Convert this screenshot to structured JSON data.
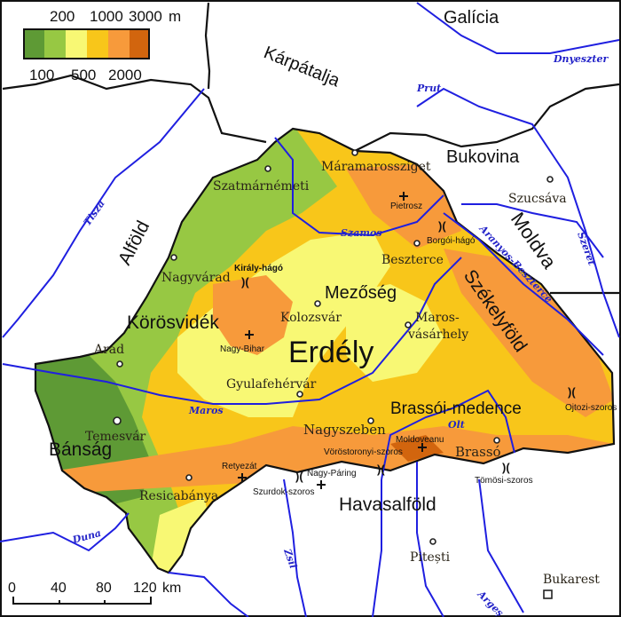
{
  "legend": {
    "unit": "m",
    "top_ticks": [
      "200",
      "1000",
      "3000"
    ],
    "bottom_ticks": [
      "100",
      "500",
      "2000"
    ],
    "colors": [
      "#5e9a35",
      "#97c843",
      "#f8f874",
      "#f8c61a",
      "#f79a3b",
      "#d2650e"
    ]
  },
  "scale_bar": {
    "ticks": [
      "0",
      "40",
      "80",
      "120"
    ],
    "unit": "km"
  },
  "regions": {
    "erdely": "Erdély",
    "mezoseg": "Mezőség",
    "korosvidek": "Körösvidék",
    "bansag": "Bánság",
    "szekelyfold": "Székelyföld",
    "brassoi_medence": "Brassói-medence",
    "havasalfold": "Havasalföld",
    "alfold": "Alföld",
    "karpatalja": "Kárpátalja",
    "galicia": "Galícia",
    "bukovina": "Bukovina",
    "moldva": "Moldva"
  },
  "cities": {
    "maramarossziget": "Máramarossziget",
    "szatmarnemeti": "Szatmárnémeti",
    "nagyvarad": "Nagyvárad",
    "kolozsvar": "Kolozsvár",
    "beszterce": "Beszterce",
    "marosvasarhely_1": "Maros-",
    "marosvasarhely_2": "vásárhely",
    "arad": "Arad",
    "gyulafehervar": "Gyulafehérvár",
    "temesvar": "Temesvár",
    "nagyszeben": "Nagyszeben",
    "brasso": "Brassó",
    "resicabanya": "Resicabánya",
    "szucsava": "Szucsáva",
    "pitesti": "Pitești",
    "bukarest": "Bukarest"
  },
  "peaks": {
    "pietrosz": "Pietrosz",
    "nagy_bihar": "Nagy-Bihar",
    "moldoveanu": "Moldoveanu",
    "retyezat": "Retyezát",
    "nagy_paring": "Nagy-Páring"
  },
  "passes": {
    "borgoi": "Borgói-hágó",
    "kiraly": "Király-hágó",
    "ojtozi": "Ojtozi-szoros",
    "vorostoronyi": "Vöröstoronyi-szoros",
    "tomosi": "Tömösi-szoros",
    "szurdok": "Szurdok-szoros"
  },
  "rivers": {
    "dnyeszter": "Dnyeszter",
    "prut": "Prut",
    "tisza": "Tisza",
    "szamos": "Szamos",
    "szeret": "Szeret",
    "aranyos_beszterce": "Aranyos-Beszterce",
    "maros": "Maros",
    "olt": "Olt",
    "duna": "Duna",
    "zsil": "Zsil",
    "arges": "Argeș"
  }
}
